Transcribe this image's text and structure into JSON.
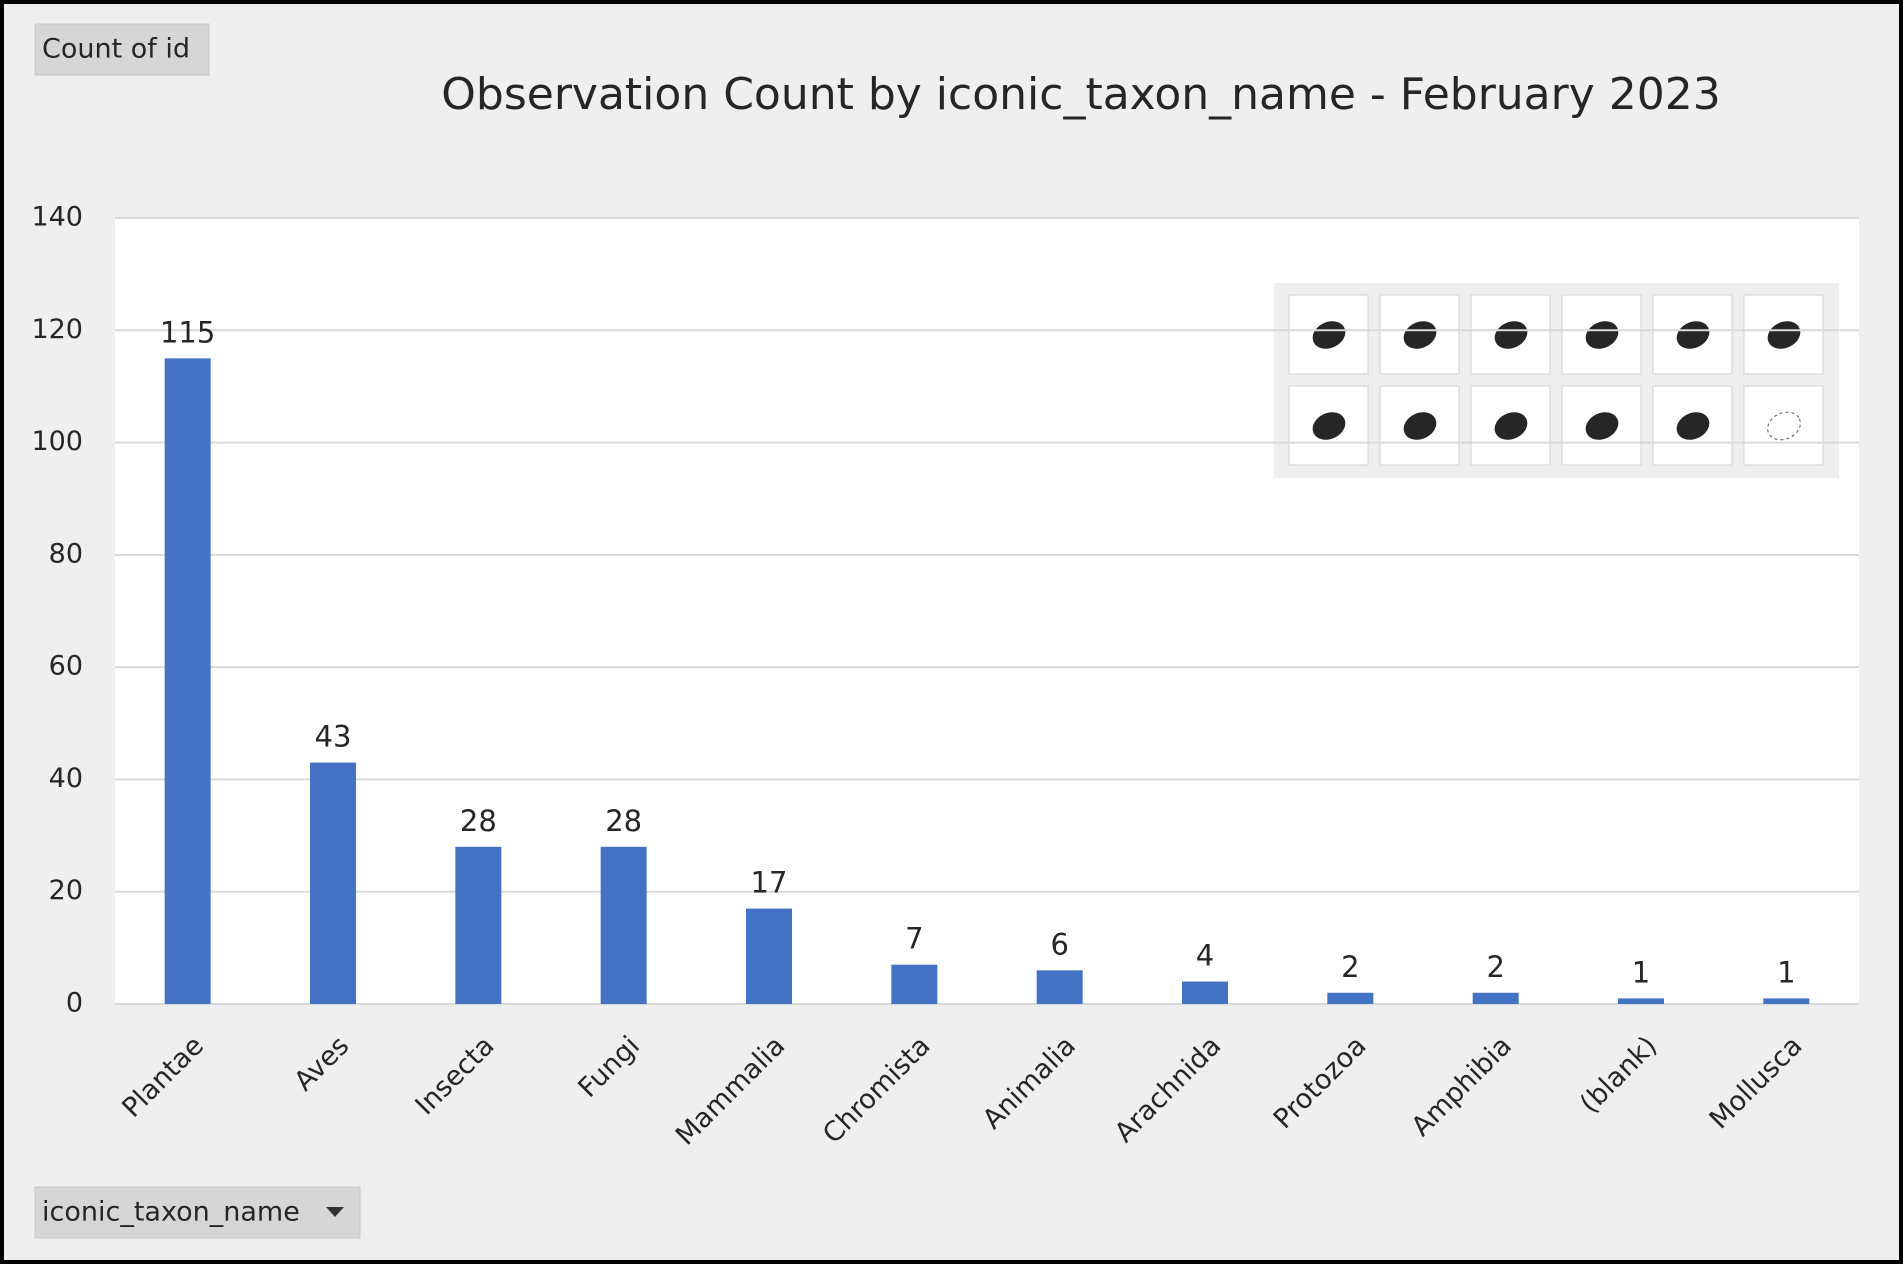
{
  "chart_data": {
    "type": "bar",
    "title": "Observation Count by iconic_taxon_name - February 2023",
    "value_button": "Count of id",
    "axis_button": "iconic_taxon_name",
    "categories": [
      "Plantae",
      "Aves",
      "Insecta",
      "Fungi",
      "Mammalia",
      "Chromista",
      "Animalia",
      "Arachnida",
      "Protozoa",
      "Amphibia",
      "(blank)",
      "Mollusca"
    ],
    "values": [
      115,
      43,
      28,
      28,
      17,
      7,
      6,
      4,
      2,
      2,
      1,
      1
    ],
    "color": "#4472c4",
    "ylim": [
      0,
      140
    ],
    "yticks": [
      0,
      20,
      40,
      60,
      80,
      100,
      120,
      140
    ],
    "grid": true
  }
}
